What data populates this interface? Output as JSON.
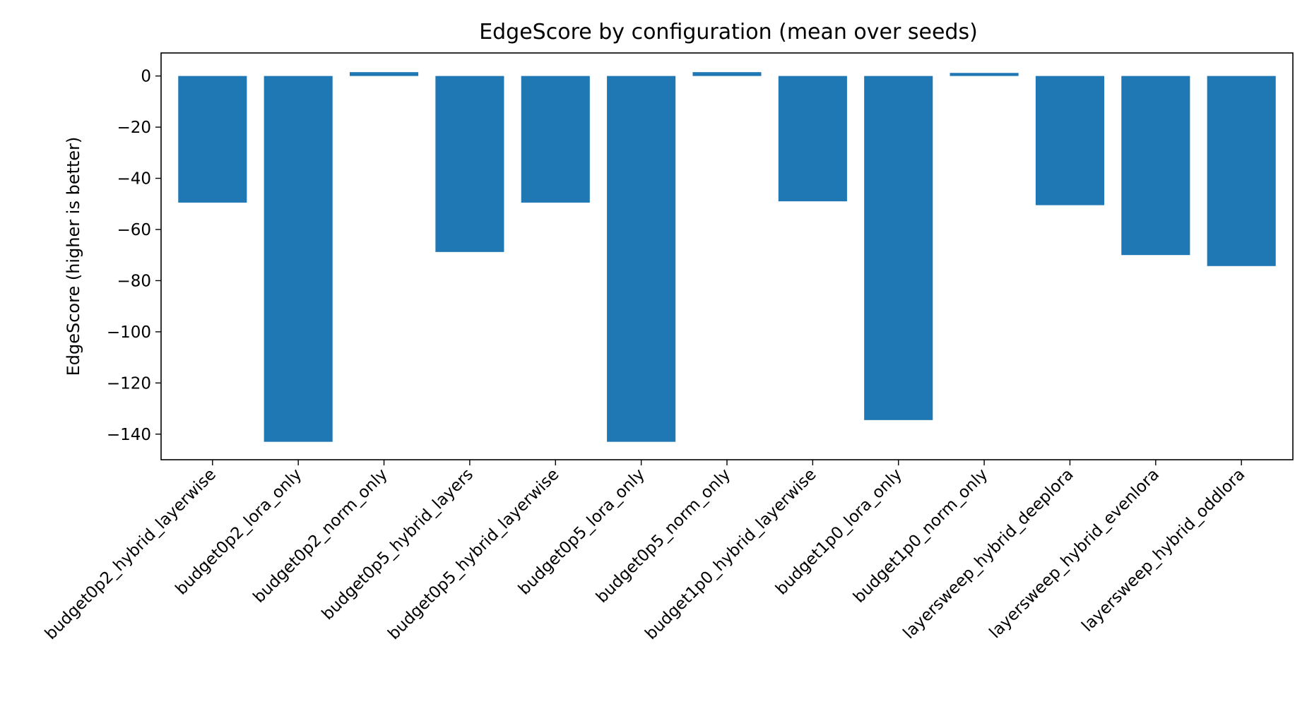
{
  "chart_data": {
    "type": "bar",
    "title": "EdgeScore by configuration (mean over seeds)",
    "xlabel": "",
    "ylabel": "EdgeScore (higher is better)",
    "categories": [
      "budget0p2_hybrid_layerwise",
      "budget0p2_lora_only",
      "budget0p2_norm_only",
      "budget0p5_hybrid_layers",
      "budget0p5_hybrid_layerwise",
      "budget0p5_lora_only",
      "budget0p5_norm_only",
      "budget1p0_hybrid_layerwise",
      "budget1p0_lora_only",
      "budget1p0_norm_only",
      "layersweep_hybrid_deeplora",
      "layersweep_hybrid_evenlora",
      "layersweep_hybrid_oddlora"
    ],
    "values": [
      -49.5,
      -143.0,
      1.5,
      -68.8,
      -49.5,
      -143.0,
      1.5,
      -49.0,
      -134.5,
      1.2,
      -50.5,
      -70.0,
      -74.3
    ],
    "ylim": [
      -150,
      9
    ],
    "yticks": [
      0,
      -20,
      -40,
      -60,
      -80,
      -100,
      -120,
      -140
    ],
    "ytick_labels": [
      "0",
      "−20",
      "−40",
      "−60",
      "−80",
      "−100",
      "−120",
      "−140"
    ],
    "grid": false,
    "legend": "none",
    "bar_color": "#1f77b4"
  }
}
